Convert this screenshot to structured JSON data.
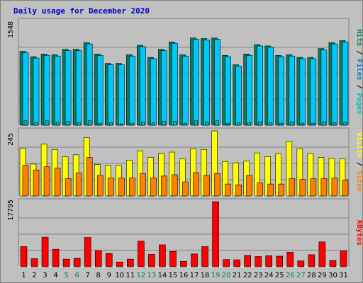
{
  "chart_data": {
    "type": "bar",
    "title": "Daily usage for December 2020",
    "x": [
      "1",
      "2",
      "3",
      "4",
      "5",
      "6",
      "7",
      "8",
      "9",
      "10",
      "11",
      "12",
      "13",
      "14",
      "15",
      "16",
      "17",
      "18",
      "19",
      "20",
      "21",
      "22",
      "23",
      "24",
      "25",
      "26",
      "27",
      "28",
      "29",
      "30",
      "31"
    ],
    "weekend_days": [
      "5",
      "6",
      "12",
      "13",
      "19",
      "20",
      "26",
      "27"
    ],
    "panels": [
      {
        "name": "hits-files-pages",
        "ymax_label": "1548",
        "ymax": 1548,
        "legend": [
          {
            "label": "Pages",
            "color": "#00c0c0"
          },
          {
            "label": " / ",
            "color": "#000000"
          },
          {
            "label": "Files",
            "color": "#0080c0"
          },
          {
            "label": " / ",
            "color": "#000000"
          },
          {
            "label": "Hits",
            "color": "#008060"
          }
        ],
        "series": [
          {
            "name": "Hits",
            "color": "#008060",
            "values": [
              1100,
              1020,
              1060,
              1050,
              1130,
              1130,
              1230,
              1060,
              920,
              920,
              1050,
              1190,
              1010,
              1130,
              1240,
              1050,
              1300,
              1290,
              1300,
              1040,
              900,
              1060,
              1200,
              1180,
              1040,
              1050,
              1010,
              1010,
              1140,
              1230,
              1260
            ]
          },
          {
            "name": "Files",
            "color": "#00c8ff",
            "values": [
              1080,
              1000,
              1040,
              1030,
              1110,
              1110,
              1210,
              1040,
              900,
              900,
              1030,
              1170,
              990,
              1110,
              1220,
              1030,
              1280,
              1270,
              1280,
              1020,
              880,
              1040,
              1180,
              1160,
              1020,
              1030,
              990,
              990,
              1120,
              1210,
              1240
            ]
          },
          {
            "name": "Pages",
            "color": "#00c0c0",
            "values": [
              70,
              40,
              70,
              50,
              60,
              40,
              70,
              30,
              40,
              20,
              30,
              50,
              40,
              60,
              60,
              30,
              70,
              50,
              70,
              30,
              40,
              40,
              50,
              40,
              30,
              50,
              30,
              30,
              50,
              40,
              50
            ]
          }
        ]
      },
      {
        "name": "visits-sites",
        "ymax_label": "245",
        "ymax": 245,
        "legend": [
          {
            "label": "Sites",
            "color": "#ff8000"
          },
          {
            "label": " / ",
            "color": "#000000"
          },
          {
            "label": "Visits",
            "color": "#ffff00"
          }
        ],
        "series": [
          {
            "name": "Visits",
            "color": "#ffff00",
            "values": [
              180,
              120,
              195,
              175,
              148,
              155,
              220,
              118,
              115,
              115,
              135,
              170,
              145,
              160,
              165,
              140,
              178,
              175,
              245,
              130,
              125,
              131,
              162,
              148,
              160,
              205,
              178,
              160,
              145,
              142,
              140
            ]
          },
          {
            "name": "Sites",
            "color": "#ff8000",
            "values": [
              115,
              98,
              110,
              105,
              65,
              87,
              145,
              78,
              68,
              68,
              68,
              85,
              68,
              75,
              80,
              53,
              88,
              78,
              85,
              45,
              42,
              78,
              50,
              45,
              45,
              65,
              62,
              65,
              65,
              68,
              60
            ]
          }
        ]
      },
      {
        "name": "kbytes",
        "ymax_label": "17795",
        "ymax": 17795,
        "legend": [
          {
            "label": "KBytes",
            "color": "#ff0000"
          }
        ],
        "series": [
          {
            "name": "KBytes",
            "color": "#ff0000",
            "values": [
              5500,
              2200,
              8100,
              4800,
              2100,
              2300,
              8000,
              4400,
              3600,
              1300,
              2100,
              7000,
              3400,
              6000,
              4200,
              1500,
              3500,
              5500,
              17795,
              2000,
              1900,
              3100,
              2800,
              3000,
              2900,
              4000,
              1600,
              3300,
              6800,
              1700,
              4300
            ]
          }
        ]
      }
    ]
  }
}
